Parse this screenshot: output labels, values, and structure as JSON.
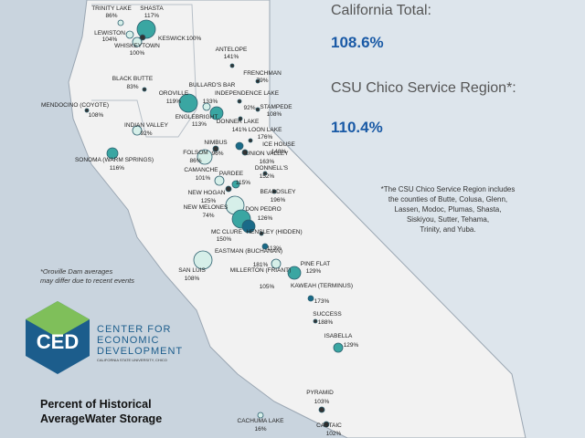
{
  "header": {
    "california_total_label": "California Total:",
    "california_total": "108.6%",
    "region_label": "CSU Chico Service Region*:",
    "region_total": "110.4%",
    "region_note": [
      "*The CSU Chico Service Region includes",
      "the counties of Butte, Colusa, Glenn,",
      "Lassen, Modoc, Plumas, Shasta,",
      "Siskiyou, Sutter, Tehama,",
      "Trinity, and Yuba."
    ]
  },
  "reservoirs": [
    {
      "name": "TRINITY LAKE",
      "pct": "86%"
    },
    {
      "name": "SHASTA",
      "pct": "117%"
    },
    {
      "name": "LEWISTON",
      "pct": "104%"
    },
    {
      "name": "KESWICK",
      "pct": "100%"
    },
    {
      "name": "WHISKEYTOWN",
      "pct": "100%"
    },
    {
      "name": "ANTELOPE",
      "pct": "141%"
    },
    {
      "name": "FRENCHMAN",
      "pct": "79%"
    },
    {
      "name": "BLACK BUTTE",
      "pct": "83%"
    },
    {
      "name": "OROVILLE",
      "pct": "119%"
    },
    {
      "name": "BULLARD'S BAR",
      "pct": "133%"
    },
    {
      "name": "INDEPENDENCE LAKE",
      "pct": "92%"
    },
    {
      "name": "STAMPEDE",
      "pct": "108%"
    },
    {
      "name": "ENGLEBRIGHT",
      "pct": "113%"
    },
    {
      "name": "MENDOCINO (COYOTE)",
      "pct": "108%"
    },
    {
      "name": "INDIAN VALLEY",
      "pct": "92%"
    },
    {
      "name": "DONNER LAKE",
      "pct": "141%"
    },
    {
      "name": "LOON LAKE",
      "pct": "176%"
    },
    {
      "name": "ICE HOUSE",
      "pct": "148%"
    },
    {
      "name": "UNION VALLEY",
      "pct": "163%"
    },
    {
      "name": "NIMBUS",
      "pct": "96%"
    },
    {
      "name": "FOLSOM",
      "pct": "86%"
    },
    {
      "name": "SONOMA (WARM SPRINGS)",
      "pct": "116%"
    },
    {
      "name": "CAMANCHE",
      "pct": "101%"
    },
    {
      "name": "PARDEE",
      "pct": "115%"
    },
    {
      "name": "DONNELL'S",
      "pct": "152%"
    },
    {
      "name": "NEW HOGAN",
      "pct": "125%"
    },
    {
      "name": "BEARDSLEY",
      "pct": "196%"
    },
    {
      "name": "NEW MELONES",
      "pct": "74%"
    },
    {
      "name": "DON PEDRO",
      "pct": "126%"
    },
    {
      "name": "MC CLURE",
      "pct": "150%"
    },
    {
      "name": "HENSLEY (HIDDEN)",
      "pct": "113%"
    },
    {
      "name": "EASTMAN (BUCHANAN)",
      "pct": "181%"
    },
    {
      "name": "SAN LUIS",
      "pct": "108%"
    },
    {
      "name": "PINE FLAT",
      "pct": "129%"
    },
    {
      "name": "MILLERTON (FRIANT)",
      "pct": "105%"
    },
    {
      "name": "KAWEAH (TERMINUS)",
      "pct": "173%"
    },
    {
      "name": "SUCCESS",
      "pct": "188%"
    },
    {
      "name": "ISABELLA",
      "pct": "129%"
    },
    {
      "name": "PYRAMID",
      "pct": "103%"
    },
    {
      "name": "CACHUMA LAKE",
      "pct": "16%"
    },
    {
      "name": "CASTAIC",
      "pct": "102%"
    }
  ],
  "note": [
    "*Oroville Dam averages",
    "may differ due to recent events"
  ],
  "logo": {
    "abbr": "CED",
    "name_lines": [
      "CENTER FOR",
      "ECONOMIC",
      "DEVELOPMENT"
    ],
    "subtitle": "CALIFORNIA STATE UNIVERSITY, CHICO"
  },
  "title_lines": [
    "Percent of Historical",
    "AverageWater Storage"
  ]
}
